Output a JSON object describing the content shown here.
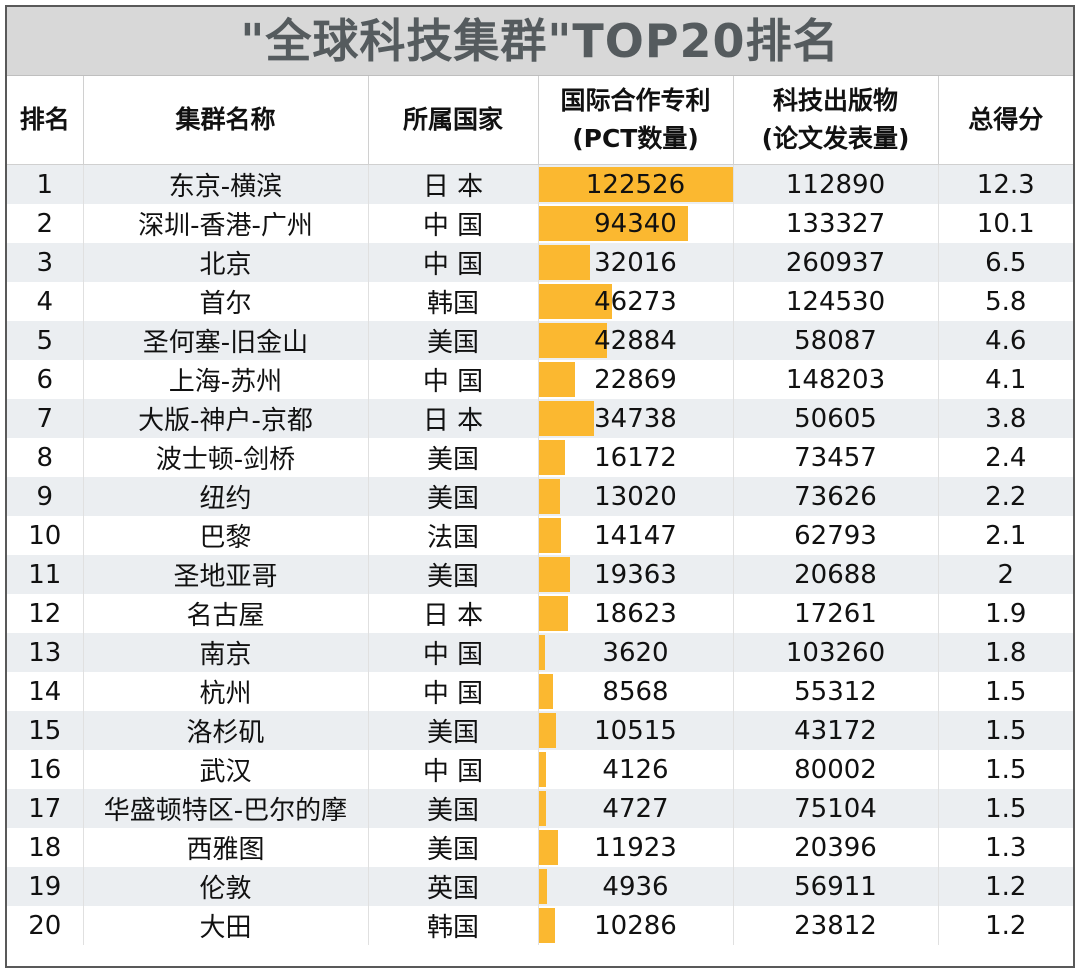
{
  "title": "\"全球科技集群\"TOP20排名",
  "headers": {
    "rank": "排名",
    "cluster": "集群名称",
    "country": "所属国家",
    "pct_line1": "国际合作专利",
    "pct_line2": "(PCT数量)",
    "pub_line1": "科技出版物",
    "pub_line2": "(论文发表量)",
    "score": "总得分"
  },
  "bar_color": "#fbb830",
  "rows": [
    {
      "rank": "1",
      "cluster": "东京-横滨",
      "country": "日 本",
      "pct": "122526",
      "pub": "112890",
      "score": "12.3"
    },
    {
      "rank": "2",
      "cluster": "深圳-香港-广州",
      "country": "中 国",
      "pct": "94340",
      "pub": "133327",
      "score": "10.1"
    },
    {
      "rank": "3",
      "cluster": "北京",
      "country": "中 国",
      "pct": "32016",
      "pub": "260937",
      "score": "6.5"
    },
    {
      "rank": "4",
      "cluster": "首尔",
      "country": "韩国",
      "pct": "46273",
      "pub": "124530",
      "score": "5.8"
    },
    {
      "rank": "5",
      "cluster": "圣何塞-旧金山",
      "country": "美国",
      "pct": "42884",
      "pub": "58087",
      "score": "4.6"
    },
    {
      "rank": "6",
      "cluster": "上海-苏州",
      "country": "中 国",
      "pct": "22869",
      "pub": "148203",
      "score": "4.1"
    },
    {
      "rank": "7",
      "cluster": "大版-神户-京都",
      "country": "日 本",
      "pct": "34738",
      "pub": "50605",
      "score": "3.8"
    },
    {
      "rank": "8",
      "cluster": "波士顿-剑桥",
      "country": "美国",
      "pct": "16172",
      "pub": "73457",
      "score": "2.4"
    },
    {
      "rank": "9",
      "cluster": "纽约",
      "country": "美国",
      "pct": "13020",
      "pub": "73626",
      "score": "2.2"
    },
    {
      "rank": "10",
      "cluster": "巴黎",
      "country": "法国",
      "pct": "14147",
      "pub": "62793",
      "score": "2.1"
    },
    {
      "rank": "11",
      "cluster": "圣地亚哥",
      "country": "美国",
      "pct": "19363",
      "pub": "20688",
      "score": "2"
    },
    {
      "rank": "12",
      "cluster": "名古屋",
      "country": "日 本",
      "pct": "18623",
      "pub": "17261",
      "score": "1.9"
    },
    {
      "rank": "13",
      "cluster": "南京",
      "country": "中 国",
      "pct": "3620",
      "pub": "103260",
      "score": "1.8"
    },
    {
      "rank": "14",
      "cluster": "杭州",
      "country": "中 国",
      "pct": "8568",
      "pub": "55312",
      "score": "1.5"
    },
    {
      "rank": "15",
      "cluster": "洛杉矶",
      "country": "美国",
      "pct": "10515",
      "pub": "43172",
      "score": "1.5"
    },
    {
      "rank": "16",
      "cluster": "武汉",
      "country": "中 国",
      "pct": "4126",
      "pub": "80002",
      "score": "1.5"
    },
    {
      "rank": "17",
      "cluster": "华盛顿特区-巴尔的摩",
      "country": "美国",
      "pct": "4727",
      "pub": "75104",
      "score": "1.5"
    },
    {
      "rank": "18",
      "cluster": "西雅图",
      "country": "美国",
      "pct": "11923",
      "pub": "20396",
      "score": "1.3"
    },
    {
      "rank": "19",
      "cluster": "伦敦",
      "country": "英国",
      "pct": "4936",
      "pub": "56911",
      "score": "1.2"
    },
    {
      "rank": "20",
      "cluster": "大田",
      "country": "韩国",
      "pct": "10286",
      "pub": "23812",
      "score": "1.2"
    }
  ]
}
